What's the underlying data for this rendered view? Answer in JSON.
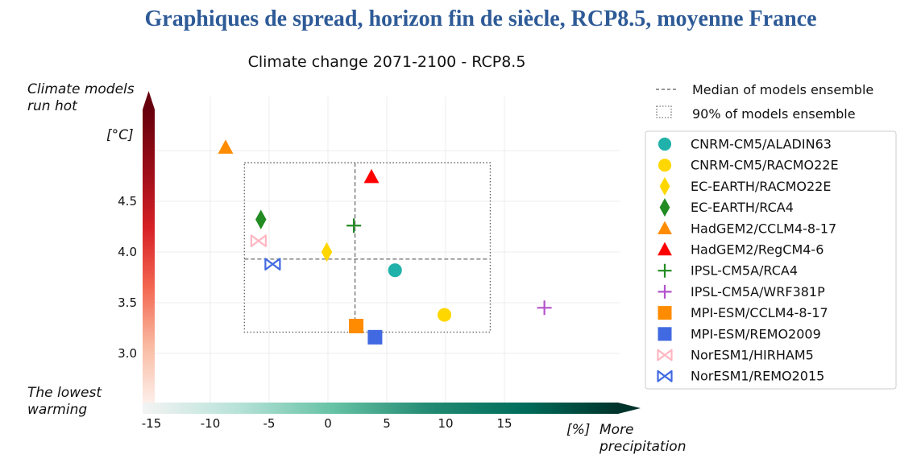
{
  "page_title": "Graphiques de spread, horizon fin de siècle, RCP8.5, moyenne France",
  "chart_data": {
    "type": "scatter",
    "title": "Climate change 2071-2100 - RCP8.5",
    "xlabel": "[%] More precipitation",
    "xlabel_unit": "[%]",
    "xlabel_text": [
      "More",
      "precipitation"
    ],
    "ylabel": "[°C]",
    "y_top_label": [
      "Climate models",
      "run hot"
    ],
    "bottom_left_label": [
      "The lowest",
      "warming"
    ],
    "xlim": [
      -16,
      20
    ],
    "ylim": [
      2.5,
      5.5
    ],
    "x_ticks": [
      -15,
      -10,
      -5,
      0,
      5,
      10,
      15
    ],
    "y_ticks": [
      3.0,
      3.5,
      4.0,
      4.5
    ],
    "grid": true,
    "legend_position": "right",
    "median": {
      "label": "Median of models ensemble",
      "x": 2.3,
      "y": 3.93
    },
    "p90_box": {
      "label": "90% of models ensemble",
      "x": [
        -7.1,
        13.8
      ],
      "y": [
        3.21,
        4.88
      ]
    },
    "series": [
      {
        "name": "CNRM-CM5/ALADIN63",
        "x": 5.7,
        "y": 3.82,
        "marker": "circle",
        "color": "#20b2aa"
      },
      {
        "name": "CNRM-CM5/RACMO22E",
        "x": 9.9,
        "y": 3.38,
        "marker": "circle",
        "color": "#ffd700"
      },
      {
        "name": "EC-EARTH/RACMO22E",
        "x": -0.1,
        "y": 4.0,
        "marker": "diamond",
        "color": "#ffd700"
      },
      {
        "name": "EC-EARTH/RCA4",
        "x": -5.7,
        "y": 4.32,
        "marker": "diamond",
        "color": "#228b22"
      },
      {
        "name": "HadGEM2/CCLM4-8-17",
        "x": -8.7,
        "y": 5.03,
        "marker": "triangle",
        "color": "#ff8c00"
      },
      {
        "name": "HadGEM2/RegCM4-6",
        "x": 3.7,
        "y": 4.74,
        "marker": "triangle",
        "color": "#ff0000"
      },
      {
        "name": "IPSL-CM5A/RCA4",
        "x": 2.2,
        "y": 4.26,
        "marker": "plus",
        "color": "#228b22"
      },
      {
        "name": "IPSL-CM5A/WRF381P",
        "x": 18.4,
        "y": 3.45,
        "marker": "plus",
        "color": "#b452cd"
      },
      {
        "name": "MPI-ESM/CCLM4-8-17",
        "x": 2.4,
        "y": 3.27,
        "marker": "square",
        "color": "#ff8c00"
      },
      {
        "name": "MPI-ESM/REMO2009",
        "x": 4.0,
        "y": 3.16,
        "marker": "square",
        "color": "#4169e1"
      },
      {
        "name": "NorESM1/HIRHAM5",
        "x": -5.9,
        "y": 4.11,
        "marker": "bowtie",
        "color": "#ffb6c1"
      },
      {
        "name": "NorESM1/REMO2015",
        "x": -4.7,
        "y": 3.88,
        "marker": "bowtie",
        "color": "#4169e1"
      }
    ],
    "colorbar_temperature": [
      "#fdf0ec",
      "#f9b9a0",
      "#f3654f",
      "#d62026",
      "#9a0d17",
      "#67000d"
    ],
    "colorbar_precipitation": [
      "#f4f4f4",
      "#b7e2d8",
      "#66c2a4",
      "#238b73",
      "#006d5b",
      "#00332b"
    ]
  }
}
